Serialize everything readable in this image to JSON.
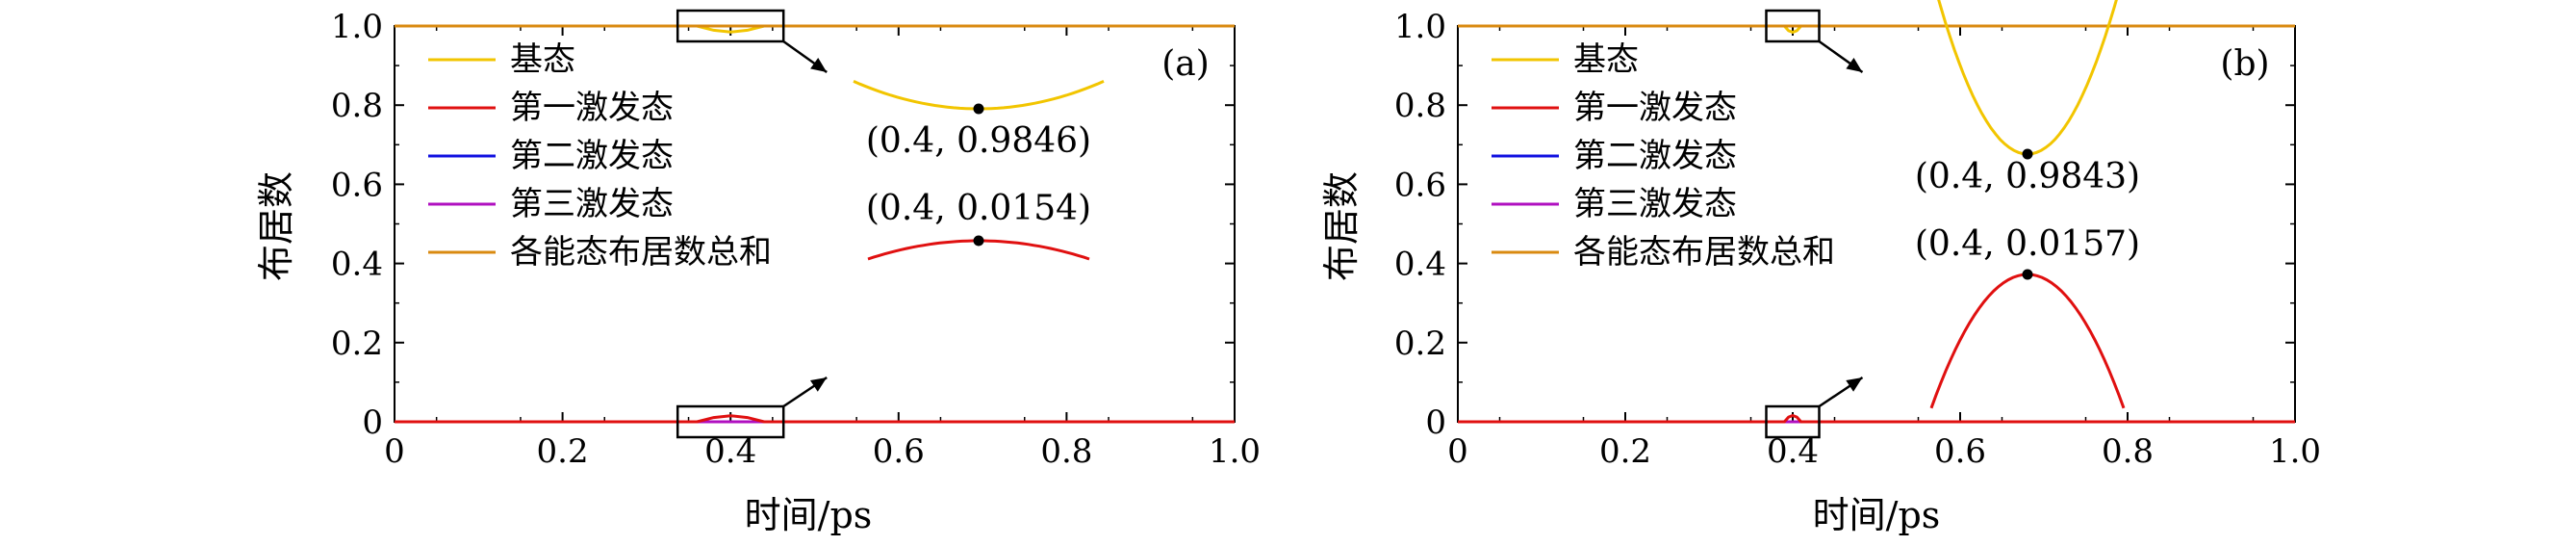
{
  "chart_data": [
    {
      "type": "line",
      "panel_label": "(a)",
      "xlabel": "时间/ps",
      "ylabel": "布居数",
      "xlim": [
        0,
        1.0
      ],
      "ylim": [
        0,
        1.0
      ],
      "x_ticks": [
        "0",
        "0.2",
        "0.4",
        "0.6",
        "0.8",
        "1.0"
      ],
      "y_ticks": [
        "0",
        "0.2",
        "0.4",
        "0.6",
        "0.8",
        "1.0"
      ],
      "legend_position": "top-left",
      "series": [
        {
          "name": "基态",
          "color": "#F2C500",
          "x": [
            0,
            0.36,
            0.38,
            0.4,
            0.42,
            0.44,
            1.0
          ],
          "y": [
            1.0,
            1.0,
            0.9893,
            0.9846,
            0.9893,
            1.0,
            1.0
          ]
        },
        {
          "name": "第一激发态",
          "color": "#E01010",
          "x": [
            0,
            0.36,
            0.38,
            0.4,
            0.42,
            0.44,
            1.0
          ],
          "y": [
            0,
            0,
            0.0107,
            0.0154,
            0.0107,
            0,
            0
          ]
        },
        {
          "name": "第二激发态",
          "color": "#1010E0",
          "x": [
            0,
            1.0
          ],
          "y": [
            0,
            0
          ]
        },
        {
          "name": "第三激发态",
          "color": "#B010C0",
          "x": [
            0,
            1.0
          ],
          "y": [
            0,
            0
          ]
        },
        {
          "name": "各能态布居数总和",
          "color": "#D98A10",
          "x": [
            0,
            1.0
          ],
          "y": [
            1.0,
            1.0
          ]
        }
      ],
      "annotations": [
        {
          "text": "(0.4, 0.9846)",
          "x": 0.4,
          "y": 0.9846
        },
        {
          "text": "(0.4, 0.0154)",
          "x": 0.4,
          "y": 0.0154
        }
      ]
    },
    {
      "type": "line",
      "panel_label": "(b)",
      "xlabel": "时间/ps",
      "ylabel": "布居数",
      "xlim": [
        0,
        1.0
      ],
      "ylim": [
        0,
        1.0
      ],
      "x_ticks": [
        "0",
        "0.2",
        "0.4",
        "0.6",
        "0.8",
        "1.0"
      ],
      "y_ticks": [
        "0",
        "0.2",
        "0.4",
        "0.6",
        "0.8",
        "1.0"
      ],
      "legend_position": "top-left",
      "series": [
        {
          "name": "基态",
          "color": "#F2C500",
          "x": [
            0,
            0.39,
            0.395,
            0.4,
            0.405,
            0.41,
            1.0
          ],
          "y": [
            1.0,
            1.0,
            0.988,
            0.9843,
            0.988,
            1.0,
            1.0
          ]
        },
        {
          "name": "第一激发态",
          "color": "#E01010",
          "x": [
            0,
            0.39,
            0.395,
            0.4,
            0.405,
            0.41,
            1.0
          ],
          "y": [
            0,
            0,
            0.012,
            0.0157,
            0.012,
            0,
            0
          ]
        },
        {
          "name": "第二激发态",
          "color": "#1010E0",
          "x": [
            0,
            1.0
          ],
          "y": [
            0,
            0
          ]
        },
        {
          "name": "第三激发态",
          "color": "#B010C0",
          "x": [
            0,
            1.0
          ],
          "y": [
            0,
            0
          ]
        },
        {
          "name": "各能态布居数总和",
          "color": "#D98A10",
          "x": [
            0,
            1.0
          ],
          "y": [
            1.0,
            1.0
          ]
        }
      ],
      "annotations": [
        {
          "text": "(0.4, 0.9843)",
          "x": 0.4,
          "y": 0.9843
        },
        {
          "text": "(0.4, 0.0157)",
          "x": 0.4,
          "y": 0.0157
        }
      ]
    }
  ]
}
